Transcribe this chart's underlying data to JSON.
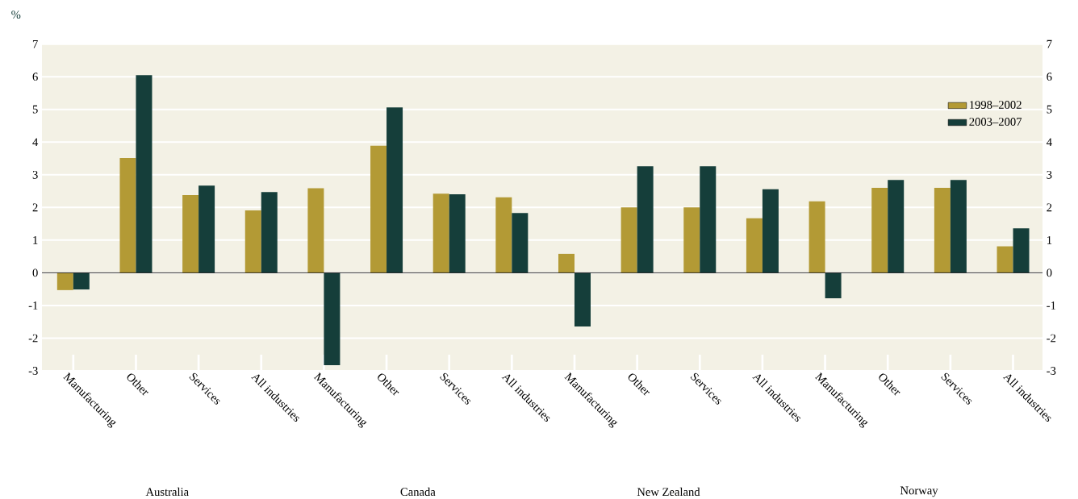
{
  "chart_data": {
    "type": "bar",
    "ylabel": "%",
    "categories": [
      "Manufacturing",
      "Other",
      "Services",
      "All industries",
      "Manufacturing",
      "Other",
      "Services",
      "All industries",
      "Manufacturing",
      "Other",
      "Services",
      "All industries",
      "Manufacturing",
      "Other",
      "Services",
      "All industries"
    ],
    "series": [
      {
        "name": "1998–2002",
        "color": "#b39a35",
        "values": [
          -0.53,
          3.51,
          2.38,
          1.91,
          2.59,
          3.89,
          2.42,
          2.31,
          0.58,
          2.0,
          2.0,
          1.67,
          2.19,
          2.6,
          2.6,
          0.81
        ]
      },
      {
        "name": "2003–2007",
        "color": "#153e3a",
        "values": [
          -0.51,
          6.05,
          2.67,
          2.47,
          -2.83,
          5.06,
          2.4,
          1.83,
          -1.64,
          3.26,
          3.26,
          2.56,
          -0.78,
          2.84,
          2.84,
          1.36
        ]
      }
    ],
    "annotations": [
      "Australia",
      "Canada",
      "New Zealand",
      "Norway"
    ],
    "ylim": [
      -3,
      7
    ],
    "yticks": [
      -3,
      -2,
      -1,
      0,
      1,
      2,
      3,
      4,
      5,
      6,
      7
    ],
    "y2lim": [
      -3,
      7
    ],
    "y2ticks": [
      -3,
      -2,
      -1,
      0,
      1,
      2,
      3,
      4,
      5,
      6,
      7
    ],
    "grid": "y",
    "legend": "top right"
  }
}
